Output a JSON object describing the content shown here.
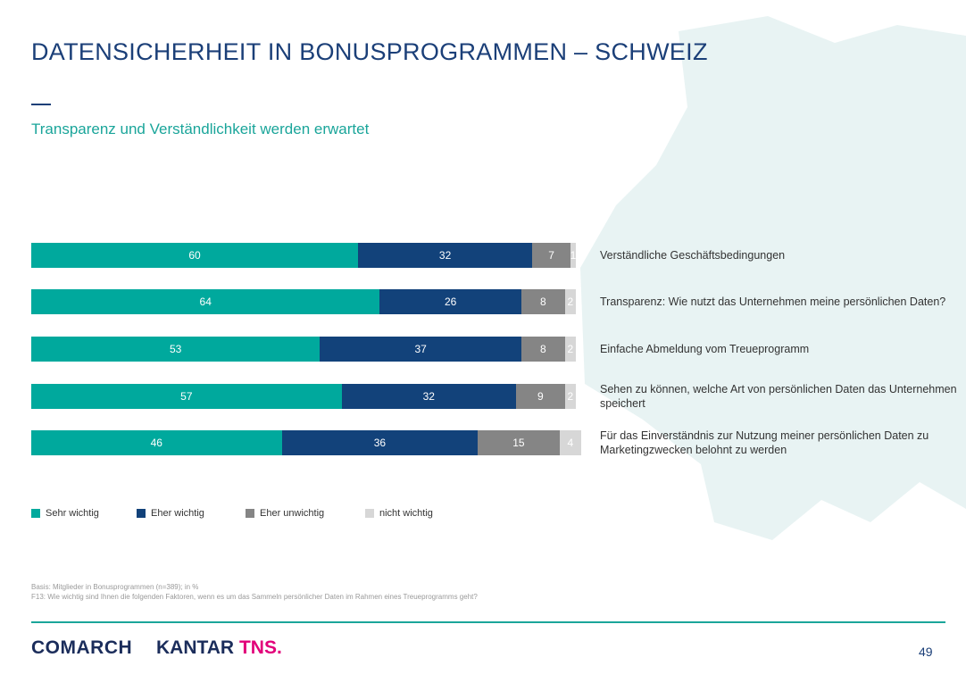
{
  "header": {
    "title": "DATENSICHERHEIT IN BONUSPROGRAMMEN – SCHWEIZ",
    "subtitle": "Transparenz und Verständlichkeit werden erwartet"
  },
  "chart_data": {
    "type": "bar",
    "orientation": "horizontal",
    "stacked": true,
    "total": 100,
    "categories": [
      "Verständliche Geschäftsbedingungen",
      "Transparenz: Wie nutzt das Unternehmen meine persönlichen Daten?",
      "Einfache Abmeldung vom Treueprogramm",
      "Sehen zu können, welche Art von persönlichen Daten das Unternehmen speichert",
      "Für das Einverständnis zur Nutzung meiner persönlichen Daten zu Marketingzwecken belohnt zu werden"
    ],
    "series": [
      {
        "name": "Sehr wichtig",
        "color": "#00a99d",
        "values": [
          60,
          64,
          53,
          57,
          46
        ]
      },
      {
        "name": "Eher wichtig",
        "color": "#12427a",
        "values": [
          32,
          26,
          37,
          32,
          36
        ]
      },
      {
        "name": "Eher unwichtig",
        "color": "#858585",
        "values": [
          7,
          8,
          8,
          9,
          15
        ]
      },
      {
        "name": "nicht wichtig",
        "color": "#d7d7d7",
        "values": [
          1,
          2,
          2,
          2,
          4
        ]
      }
    ],
    "legend_position": "bottom-left",
    "data_labels": true
  },
  "footnotes": {
    "basis": "Basis: Mitglieder in Bonusprogrammen (n=389); in %",
    "question": "F13: Wie wichtig sind Ihnen die folgenden Faktoren, wenn es um das Sammeln persönlicher Daten im Rahmen eines Treueprogramms geht?"
  },
  "footer": {
    "brand_comarch": "COMARCH",
    "brand_kantar": "KANTAR",
    "brand_tns": "TNS.",
    "page_number": "49",
    "accent_color": "#1aa59a"
  }
}
